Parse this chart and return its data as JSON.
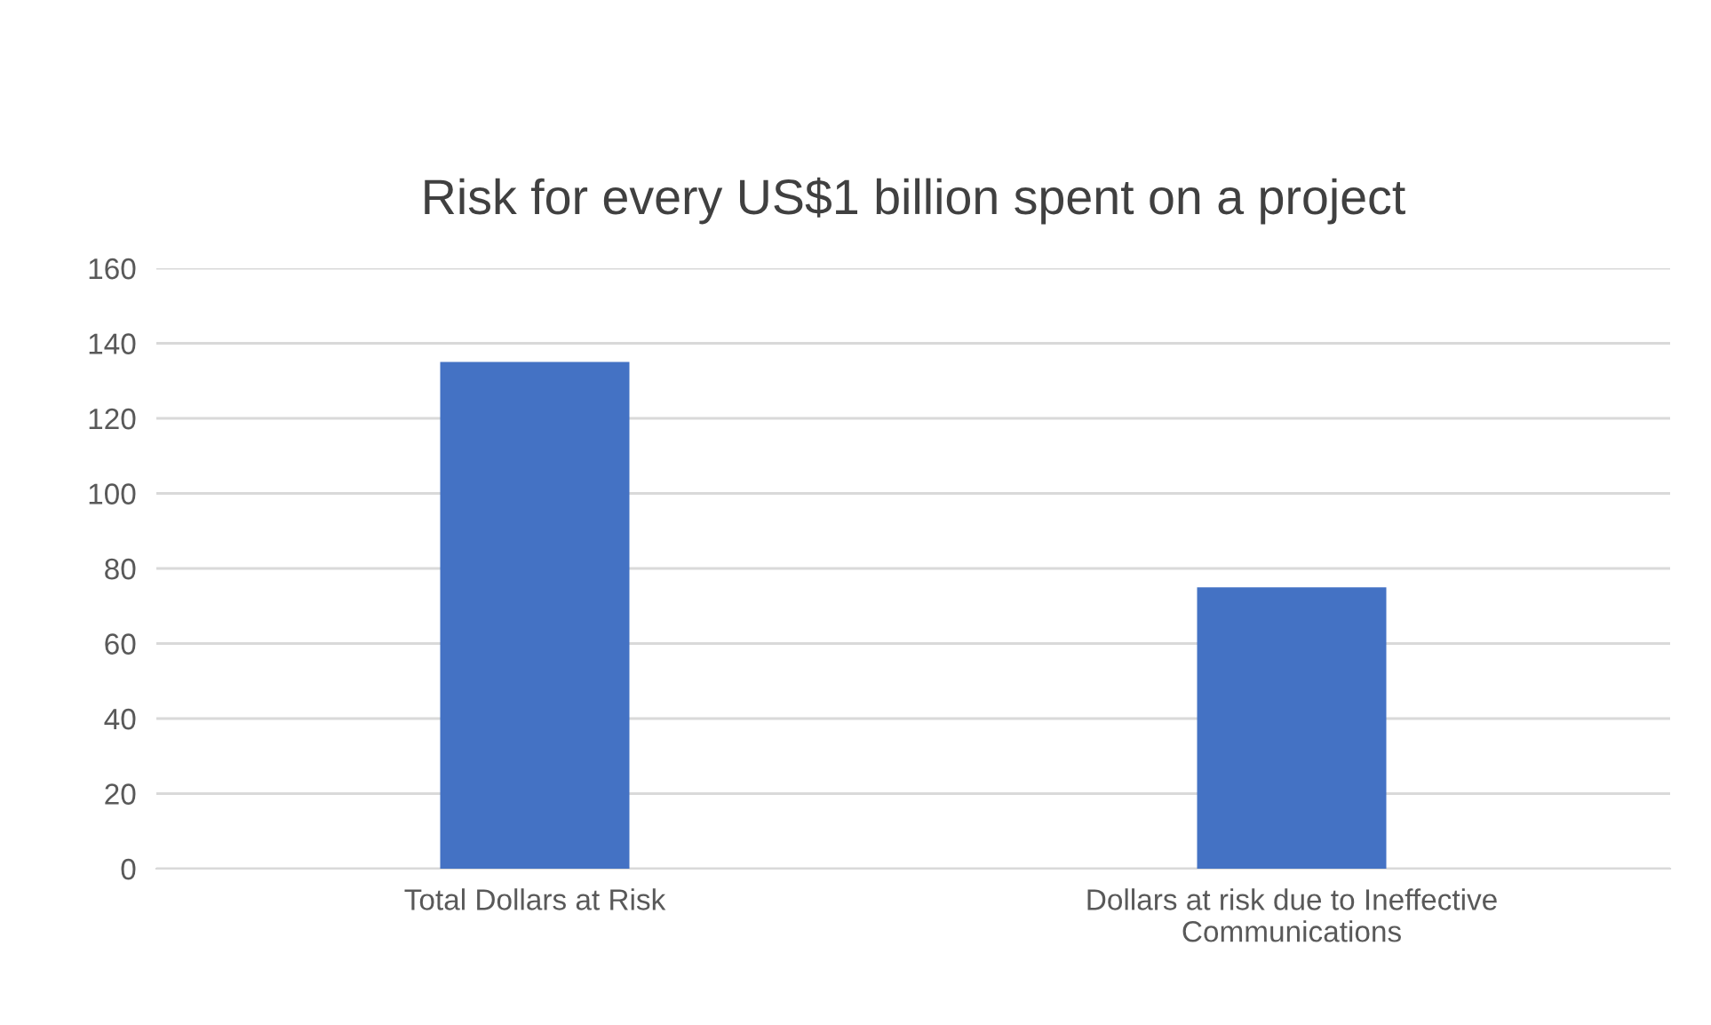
{
  "chart_data": {
    "type": "bar",
    "title": "Risk for every US$1 billion spent on a project",
    "categories": [
      "Total Dollars at Risk",
      "Dollars at risk due to Ineffective Communications"
    ],
    "values": [
      135,
      75
    ],
    "color": "#4472c4",
    "ylim": [
      0,
      160
    ],
    "yticks": [
      0,
      20,
      40,
      60,
      80,
      100,
      120,
      140,
      160
    ],
    "grid": "y"
  }
}
